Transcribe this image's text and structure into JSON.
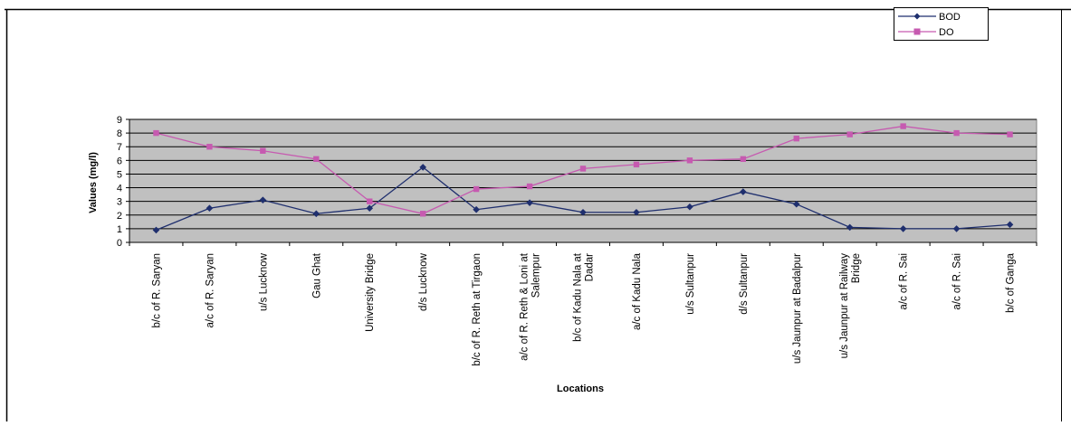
{
  "chart_data": {
    "type": "line",
    "xlabel": "Locations",
    "ylabel": "Values (mg/l)",
    "ylim": [
      0,
      9
    ],
    "yticks": [
      0,
      1,
      2,
      3,
      4,
      5,
      6,
      7,
      8,
      9
    ],
    "grid": true,
    "legend_position": "top-right",
    "categories": [
      [
        "b/c of R. Saryan"
      ],
      [
        "a/c of R. Saryan"
      ],
      [
        "u/s Lucknow"
      ],
      [
        "Gau Ghat"
      ],
      [
        "University Bridge"
      ],
      [
        "d/s Lucknow"
      ],
      [
        "b/c of R. Reth at Tirgaon"
      ],
      [
        "a/c of R. Reth & Loni at",
        "Salempur"
      ],
      [
        "b/c of Kadu Nala at",
        "Dadar"
      ],
      [
        "a/c of Kadu Nala"
      ],
      [
        "u/s Sultanpur"
      ],
      [
        "d/s Sultanpur"
      ],
      [
        "u/s Jaunpur at Badalpur"
      ],
      [
        "u/s Jaunpur at Railway",
        "Bridge"
      ],
      [
        "a/c of R. Sai"
      ],
      [
        "a/c of R. Sai"
      ],
      [
        "b/c of Ganga"
      ]
    ],
    "series": [
      {
        "name": "BOD",
        "color": "#1f2f6e",
        "marker": "diamond",
        "values": [
          0.9,
          2.5,
          3.1,
          2.1,
          2.5,
          5.5,
          2.4,
          2.9,
          2.2,
          2.2,
          2.6,
          3.7,
          2.8,
          1.1,
          1.0,
          1.0,
          1.3
        ]
      },
      {
        "name": "DO",
        "color": "#c65ab0",
        "marker": "square",
        "values": [
          8.0,
          7.0,
          6.7,
          6.1,
          3.0,
          2.1,
          3.9,
          4.1,
          5.4,
          5.7,
          6.0,
          6.1,
          7.6,
          7.9,
          8.5,
          8.0,
          7.9
        ]
      }
    ]
  }
}
